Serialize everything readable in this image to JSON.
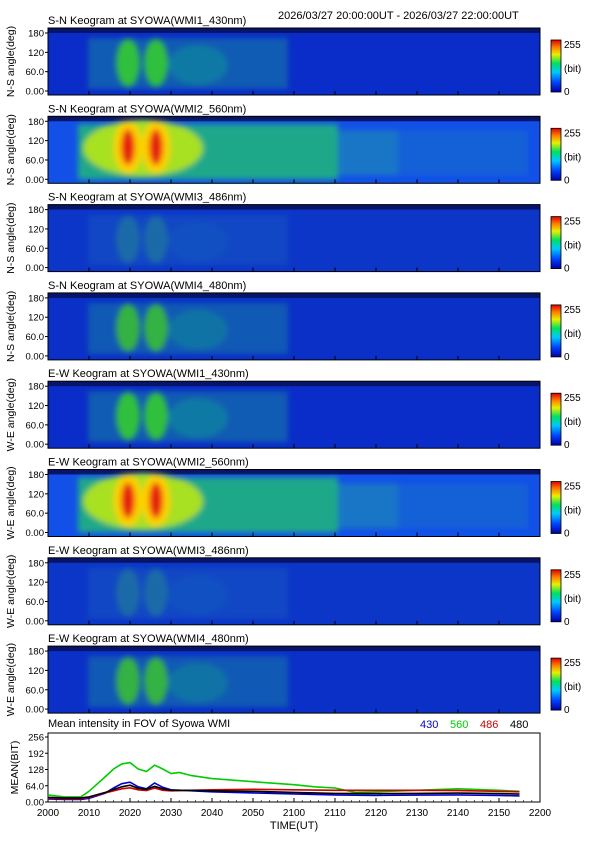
{
  "header_time": "2026/03/27 20:00:00UT - 2026/03/27 22:00:00UT",
  "colorbar": {
    "max_label": "255",
    "unit_label": "(bit)",
    "min_label": "0"
  },
  "keograms": [
    {
      "title": "S-N Keogram at SYOWA(WMI1_430nm)",
      "ylabel": "N-S angle(deg)",
      "yticks": [
        "180",
        "120",
        "60.0",
        "0.00"
      ],
      "channel": "430",
      "dir": "ns"
    },
    {
      "title": "S-N Keogram at SYOWA(WMI2_560nm)",
      "ylabel": "N-S angle(deg)",
      "yticks": [
        "180",
        "120",
        "60.0",
        "0.00"
      ],
      "channel": "560",
      "dir": "ns"
    },
    {
      "title": "S-N Keogram at SYOWA(WMI3_486nm)",
      "ylabel": "N-S angle(deg)",
      "yticks": [
        "180",
        "120",
        "60.0",
        "0.00"
      ],
      "channel": "486",
      "dir": "ns"
    },
    {
      "title": "S-N Keogram at SYOWA(WMI4_480nm)",
      "ylabel": "N-S angle(deg)",
      "yticks": [
        "180",
        "120",
        "60.0",
        "0.00"
      ],
      "channel": "480",
      "dir": "ns"
    },
    {
      "title": "E-W Keogram at SYOWA(WMI1_430nm)",
      "ylabel": "W-E angle(deg)",
      "yticks": [
        "180",
        "120",
        "60.0",
        "0.00"
      ],
      "channel": "430",
      "dir": "ew"
    },
    {
      "title": "E-W Keogram at SYOWA(WMI2_560nm)",
      "ylabel": "W-E angle(deg)",
      "yticks": [
        "180",
        "120",
        "60.0",
        "0.00"
      ],
      "channel": "560",
      "dir": "ew"
    },
    {
      "title": "E-W Keogram at SYOWA(WMI3_486nm)",
      "ylabel": "W-E angle(deg)",
      "yticks": [
        "180",
        "120",
        "60.0",
        "0.00"
      ],
      "channel": "486",
      "dir": "ew"
    },
    {
      "title": "E-W Keogram at SYOWA(WMI4_480nm)",
      "ylabel": "W-E angle(deg)",
      "yticks": [
        "180",
        "120",
        "60.0",
        "0.00"
      ],
      "channel": "480",
      "dir": "ew"
    }
  ],
  "chart_data": {
    "type": "line",
    "title": "Mean intensity in FOV of Syowa WMI",
    "xlabel": "TIME(UT)",
    "ylabel": "MEAN(BIT)",
    "xlim": [
      2000,
      2200
    ],
    "ylim": [
      0,
      256
    ],
    "xticks": [
      "2000",
      "2010",
      "2020",
      "2030",
      "2040",
      "2050",
      "2100",
      "2110",
      "2120",
      "2130",
      "2140",
      "2150",
      "2200"
    ],
    "yticks": [
      "256",
      "192",
      "128",
      "64.0",
      "0.00"
    ],
    "legend_position": "top-right",
    "series": [
      {
        "name": "430",
        "color": "#0000cc",
        "x": [
          2000,
          2004,
          2008,
          2010,
          2014,
          2016,
          2018,
          2020,
          2022,
          2024,
          2026,
          2028,
          2030,
          2035,
          2040,
          2050,
          2100,
          2110,
          2120,
          2130,
          2140,
          2150,
          2155
        ],
        "y": [
          12,
          10,
          10,
          14,
          35,
          55,
          72,
          78,
          60,
          52,
          75,
          58,
          48,
          44,
          40,
          36,
          32,
          28,
          26,
          27,
          28,
          26,
          24
        ]
      },
      {
        "name": "560",
        "color": "#00cc00",
        "x": [
          2000,
          2004,
          2008,
          2010,
          2014,
          2016,
          2018,
          2020,
          2022,
          2024,
          2026,
          2028,
          2030,
          2032,
          2035,
          2040,
          2050,
          2100,
          2105,
          2110,
          2115,
          2120,
          2130,
          2140,
          2150,
          2155
        ],
        "y": [
          28,
          20,
          20,
          42,
          100,
          130,
          150,
          155,
          130,
          120,
          145,
          130,
          112,
          116,
          104,
          92,
          80,
          68,
          60,
          55,
          38,
          40,
          46,
          52,
          46,
          42
        ]
      },
      {
        "name": "486",
        "color": "#cc0000",
        "x": [
          2000,
          2004,
          2008,
          2010,
          2014,
          2018,
          2020,
          2022,
          2024,
          2026,
          2028,
          2030,
          2035,
          2040,
          2050,
          2100,
          2110,
          2120,
          2130,
          2140,
          2150,
          2155
        ],
        "y": [
          15,
          13,
          13,
          18,
          36,
          52,
          56,
          48,
          45,
          55,
          46,
          44,
          46,
          48,
          50,
          48,
          46,
          46,
          46,
          45,
          42,
          40
        ]
      },
      {
        "name": "480",
        "color": "#000000",
        "x": [
          2000,
          2004,
          2008,
          2010,
          2014,
          2018,
          2020,
          2022,
          2024,
          2026,
          2028,
          2030,
          2035,
          2040,
          2050,
          2100,
          2110,
          2120,
          2130,
          2140,
          2150,
          2155
        ],
        "y": [
          18,
          16,
          16,
          20,
          38,
          60,
          66,
          54,
          50,
          62,
          52,
          46,
          46,
          44,
          42,
          38,
          34,
          33,
          34,
          35,
          33,
          31
        ]
      }
    ]
  }
}
